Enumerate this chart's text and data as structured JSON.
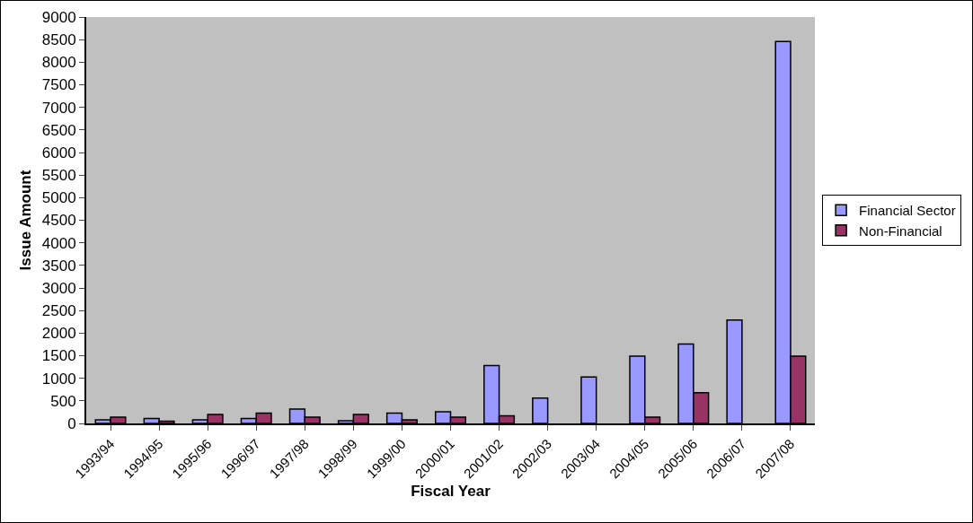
{
  "chart_data": {
    "type": "bar",
    "xlabel": "Fiscal Year",
    "ylabel": "Issue Amount",
    "categories": [
      "1993/94",
      "1994/95",
      "1995/96",
      "1996/97",
      "1997/98",
      "1998/99",
      "1999/00",
      "2000/01",
      "2001/02",
      "2002/03",
      "2003/04",
      "2004/05",
      "2005/06",
      "2006/07",
      "2007/08"
    ],
    "series": [
      {
        "name": "Financial Sector",
        "color": "#9999ff",
        "values": [
          80,
          110,
          80,
          110,
          320,
          60,
          230,
          260,
          1280,
          560,
          1030,
          1490,
          1760,
          2290,
          8460
        ]
      },
      {
        "name": "Non-Financial",
        "color": "#993366",
        "values": [
          140,
          50,
          200,
          230,
          140,
          200,
          80,
          140,
          170,
          null,
          null,
          140,
          680,
          null,
          1490
        ]
      }
    ],
    "ylim": [
      0,
      9000
    ],
    "yticks": [
      0,
      500,
      1000,
      1500,
      2000,
      2500,
      3000,
      3500,
      4000,
      4500,
      5000,
      5500,
      6000,
      6500,
      7000,
      7500,
      8000,
      8500,
      9000
    ],
    "grid": false,
    "legend": "right"
  }
}
